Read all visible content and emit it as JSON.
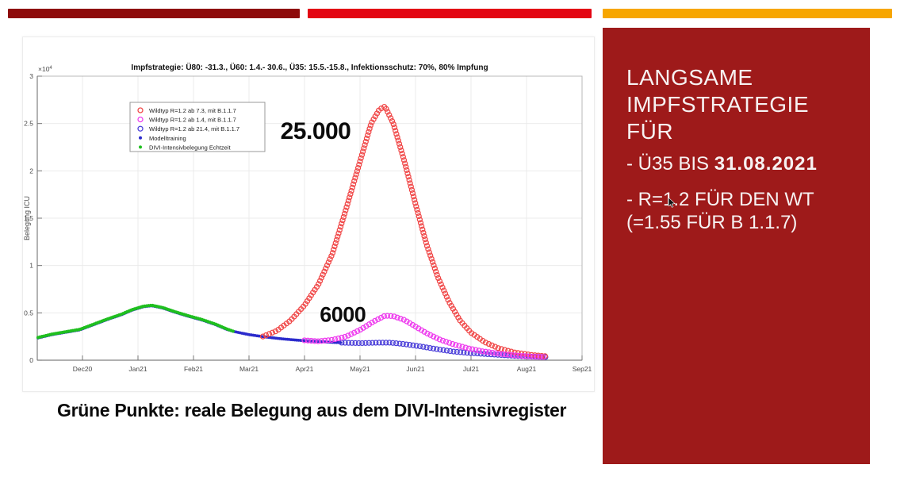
{
  "top_bars": {
    "colors": [
      "#8E0B0B",
      "#E30613",
      "#F7A600"
    ]
  },
  "slide": {
    "caption": "Grüne Punkte: reale Belegung aus dem DIVI-Intensivregister"
  },
  "sidebar": {
    "bg": "#9E1A1A",
    "text_color": "#F7F2F2",
    "title_lines": [
      "LANGSAME",
      "IMPFSTRATEGIE",
      "FÜR"
    ],
    "bullet1_prefix": "- Ü35 BIS ",
    "bullet1_bold": "31.08.2021",
    "bullet2": "- R=1.2 FÜR DEN WT",
    "bullet3": "(=1.55 FÜR B 1.1.7)"
  },
  "chart_data": {
    "type": "scatter",
    "title": "Impfstrategie: Ü80: -31.3., Ü60: 1.4.- 30.6., Ü35: 15.5.-15.8., Infektionsschutz: 70%, 80% Impfung",
    "ylabel": "Belegung ICU",
    "y_multiplier": "×10",
    "y_multiplier_exp": "4",
    "x_unit": "months_since_2020-12-01",
    "x_ticks": [
      "Dec20",
      "Jan21",
      "Feb21",
      "Mar21",
      "Apr21",
      "May21",
      "Jun21",
      "Jul21",
      "Aug21",
      "Sep21"
    ],
    "y_ticks": [
      0,
      0.5,
      1,
      1.5,
      2,
      2.5,
      3
    ],
    "ylim": [
      0,
      3
    ],
    "xlim": [
      -1.05,
      9
    ],
    "grid": true,
    "legend_position": "upper-left-inside",
    "legend": [
      {
        "marker": "circle",
        "color": "#F04848",
        "label": "Wildtyp R=1.2 ab 7.3, mit B.1.1.7"
      },
      {
        "marker": "circle",
        "color": "#EE3BEE",
        "label": "Wildtyp R=1.2 ab 1.4, mit B.1.1.7"
      },
      {
        "marker": "circle",
        "color": "#4B3FD9",
        "label": "Wildtyp R=1.2 ab 21.4, mit B.1.1.7"
      },
      {
        "marker": "dot",
        "color": "#2B2BCC",
        "label": "Modelltraining"
      },
      {
        "marker": "dot",
        "color": "#1FBF1F",
        "label": "DIVI-Intensivbelegung Echtzeit"
      }
    ],
    "annotations": [
      {
        "text": "25.000",
        "x": 4.2,
        "y": 2.42,
        "size": 30
      },
      {
        "text": "6000",
        "x": 4.69,
        "y": 0.49,
        "size": 27
      }
    ],
    "series": [
      {
        "name": "Modelltraining",
        "marker": "dot",
        "color": "#2B2BCC",
        "r": 1.9,
        "spacing": 2.4,
        "x": [
          -0.8,
          -0.55,
          -0.3,
          -0.05,
          0.2,
          0.45,
          0.7,
          0.9,
          1.1,
          1.25,
          1.45,
          1.65,
          1.9,
          2.15,
          2.4,
          2.6,
          2.75,
          3.0,
          3.3,
          3.6,
          3.9,
          4.2,
          4.45,
          4.67
        ],
        "y": [
          0.235,
          0.27,
          0.295,
          0.32,
          0.375,
          0.43,
          0.48,
          0.53,
          0.565,
          0.575,
          0.55,
          0.51,
          0.465,
          0.425,
          0.375,
          0.325,
          0.3,
          0.27,
          0.245,
          0.225,
          0.21,
          0.2,
          0.19,
          0.185
        ]
      },
      {
        "name": "DIVI-Intensivbelegung Echtzeit",
        "marker": "dot",
        "color": "#1FBF1F",
        "r": 2.1,
        "spacing": 2.6,
        "x": [
          -0.8,
          -0.55,
          -0.3,
          -0.05,
          0.2,
          0.45,
          0.7,
          0.9,
          1.1,
          1.25,
          1.45,
          1.65,
          1.9,
          2.15,
          2.4,
          2.6,
          2.72
        ],
        "y": [
          0.24,
          0.275,
          0.3,
          0.325,
          0.38,
          0.435,
          0.485,
          0.535,
          0.57,
          0.58,
          0.555,
          0.515,
          0.47,
          0.43,
          0.38,
          0.33,
          0.305
        ]
      },
      {
        "name": "Wildtyp R=1.2 ab 21.4, mit B.1.1.7",
        "marker": "circle",
        "color": "#4B3FD9",
        "r": 3,
        "spacing": 4.3,
        "x": [
          4.67,
          5.0,
          5.3,
          5.55,
          5.8,
          6.1,
          6.4,
          6.7,
          7.0,
          7.4,
          7.8,
          8.1,
          8.35
        ],
        "y": [
          0.185,
          0.18,
          0.185,
          0.185,
          0.17,
          0.145,
          0.115,
          0.09,
          0.075,
          0.06,
          0.045,
          0.038,
          0.033
        ]
      },
      {
        "name": "Wildtyp R=1.2 ab 7.3, mit B.1.1.7",
        "marker": "circle",
        "color": "#F04848",
        "r": 3,
        "spacing": 4.3,
        "x": [
          3.25,
          3.5,
          3.75,
          4.0,
          4.25,
          4.5,
          4.75,
          5.0,
          5.2,
          5.35,
          5.45,
          5.6,
          5.8,
          6.0,
          6.2,
          6.4,
          6.6,
          6.8,
          7.0,
          7.25,
          7.5,
          7.8,
          8.1,
          8.35
        ],
        "y": [
          0.25,
          0.31,
          0.42,
          0.58,
          0.8,
          1.12,
          1.6,
          2.1,
          2.5,
          2.65,
          2.68,
          2.5,
          2.1,
          1.65,
          1.22,
          0.88,
          0.62,
          0.42,
          0.29,
          0.19,
          0.125,
          0.08,
          0.055,
          0.042
        ]
      },
      {
        "name": "Wildtyp R=1.2 ab 1.4, mit B.1.1.7",
        "marker": "circle",
        "color": "#EE3BEE",
        "r": 3,
        "spacing": 4.3,
        "x": [
          4.0,
          4.25,
          4.5,
          4.75,
          5.0,
          5.25,
          5.45,
          5.6,
          5.8,
          6.0,
          6.2,
          6.45,
          6.7,
          6.95,
          7.2,
          7.5,
          7.8,
          8.1,
          8.35
        ],
        "y": [
          0.21,
          0.2,
          0.215,
          0.25,
          0.32,
          0.41,
          0.47,
          0.465,
          0.425,
          0.355,
          0.285,
          0.215,
          0.165,
          0.125,
          0.095,
          0.07,
          0.05,
          0.038,
          0.032
        ]
      }
    ]
  }
}
